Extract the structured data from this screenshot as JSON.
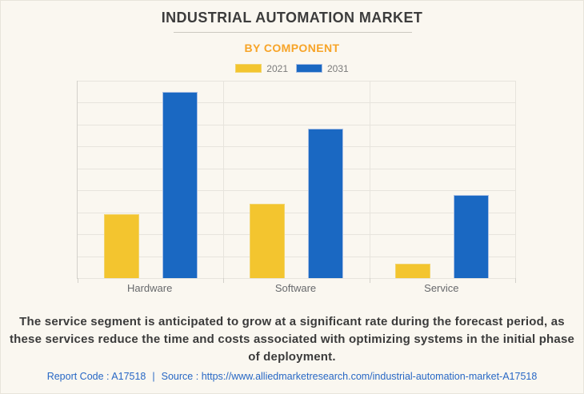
{
  "page": {
    "background": "#FAF7F0",
    "border_color": "#E8E4DB"
  },
  "header": {
    "title": "INDUSTRIAL AUTOMATION MARKET",
    "subtitle": "BY COMPONENT",
    "subtitle_color": "#F7A428"
  },
  "chart_data": {
    "type": "bar",
    "categories": [
      "Hardware",
      "Software",
      "Service"
    ],
    "series": [
      {
        "name": "2021",
        "color": "#F3C52F",
        "border_color": "#F2D46C",
        "values": [
          29,
          34,
          6.5
        ]
      },
      {
        "name": "2031",
        "color": "#1A68C2",
        "border_color": "#A9BFE4",
        "values": [
          85,
          68,
          38
        ]
      }
    ],
    "title": "INDUSTRIAL AUTOMATION MARKET",
    "subtitle": "BY COMPONENT",
    "xlabel": "",
    "ylabel": "",
    "ylim": [
      0,
      90
    ],
    "y_gridline_count": 10,
    "grid": true,
    "value_axis_labels_visible": false,
    "legend_position": "top"
  },
  "description": "The service segment is anticipated to grow at a significant rate during the forecast period, as these services reduce the time and costs associated with optimizing systems in the initial phase of deployment.",
  "footer": {
    "report_code_label": "Report Code : A17518",
    "separator": "|",
    "source_label": "Source :",
    "source_url": "https://www.alliedmarketresearch.com/industrial-automation-market-A17518",
    "color": "#2767C5"
  }
}
